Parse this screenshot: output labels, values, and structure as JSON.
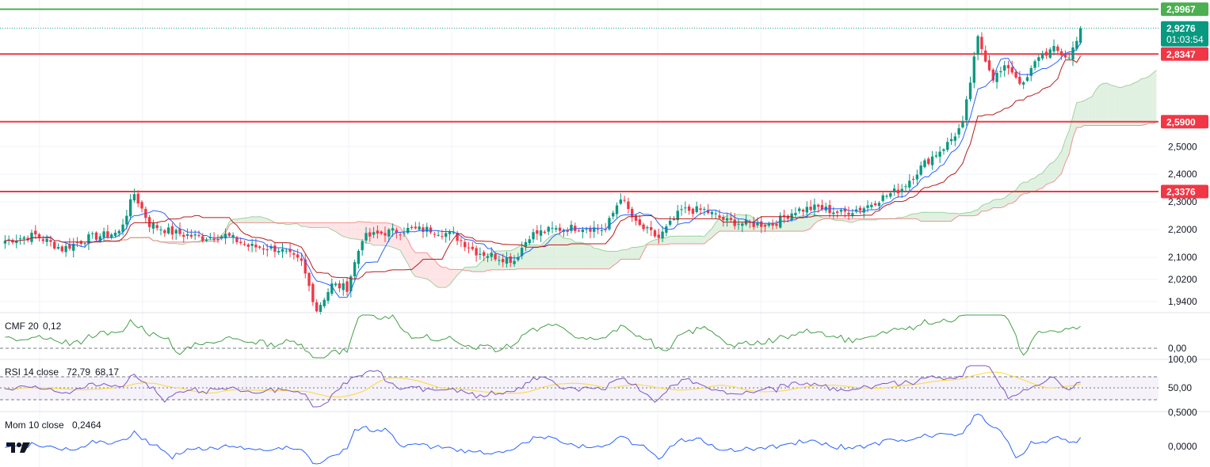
{
  "colors": {
    "up": "#089981",
    "down": "#f23645",
    "tenkan": "#2962ff",
    "kijun": "#b71c1c",
    "cloud_bull": "#c8e6c9",
    "cloud_bear": "#ffcdd2",
    "level": "#f23645",
    "top_level": "#4caf50",
    "cmf": "#43a047",
    "rsi": "#7e57c2",
    "rsi_ma": "#fdd835",
    "mom": "#2962ff",
    "grid": "#f0f3fa"
  },
  "logo_icon": "tradingview-logo-icon",
  "price_axis": {
    "ticks": [
      "2,5000",
      "2,4000",
      "2,3000",
      "2,2000",
      "2,1000",
      "2,0200",
      "1,9400"
    ],
    "tick_values": [
      2.5,
      2.4,
      2.3,
      2.2,
      2.1,
      2.02,
      1.94
    ],
    "labels": [
      {
        "text": "2,9967",
        "value": 2.9967,
        "kind": "top_level"
      },
      {
        "text": "2,9276",
        "value": 2.9276,
        "kind": "last_price",
        "countdown": "01:03:54"
      },
      {
        "text": "2,8347",
        "value": 2.8347,
        "kind": "level"
      },
      {
        "text": "2,5900",
        "value": 2.59,
        "kind": "level"
      },
      {
        "text": "2,3376",
        "value": 2.3376,
        "kind": "level"
      }
    ]
  },
  "indicators": {
    "cmf": {
      "name": "CMF 20",
      "value": "0,12",
      "axis": [
        "0,00"
      ]
    },
    "rsi": {
      "name": "RSI 14 close",
      "value": "72,79",
      "ma_value": "68,17",
      "axis": [
        "100,00",
        "50,00"
      ]
    },
    "mom": {
      "name": "Mom 10 close",
      "value": "0,2464",
      "axis": [
        "0,5000",
        "0,0000"
      ]
    }
  },
  "chart_data": {
    "type": "candlestick",
    "levels": [
      2.9967,
      2.8347,
      2.59,
      2.3376
    ],
    "last_price": 2.9276,
    "ylim": [
      1.9,
      3.03
    ],
    "anchors": [
      [
        0,
        2.16
      ],
      [
        8,
        2.18
      ],
      [
        15,
        2.13
      ],
      [
        22,
        2.17
      ],
      [
        30,
        2.19
      ],
      [
        34,
        2.33
      ],
      [
        38,
        2.22
      ],
      [
        44,
        2.19
      ],
      [
        52,
        2.17
      ],
      [
        58,
        2.18
      ],
      [
        64,
        2.14
      ],
      [
        72,
        2.13
      ],
      [
        78,
        2.08
      ],
      [
        82,
        1.91
      ],
      [
        86,
        2.0
      ],
      [
        90,
        1.99
      ],
      [
        94,
        2.17
      ],
      [
        100,
        2.19
      ],
      [
        106,
        2.2
      ],
      [
        112,
        2.2
      ],
      [
        118,
        2.18
      ],
      [
        124,
        2.12
      ],
      [
        130,
        2.1
      ],
      [
        134,
        2.09
      ],
      [
        138,
        2.18
      ],
      [
        144,
        2.2
      ],
      [
        152,
        2.21
      ],
      [
        158,
        2.2
      ],
      [
        162,
        2.32
      ],
      [
        166,
        2.22
      ],
      [
        172,
        2.17
      ],
      [
        178,
        2.27
      ],
      [
        184,
        2.27
      ],
      [
        190,
        2.23
      ],
      [
        196,
        2.22
      ],
      [
        202,
        2.22
      ],
      [
        208,
        2.27
      ],
      [
        214,
        2.28
      ],
      [
        220,
        2.26
      ],
      [
        226,
        2.28
      ],
      [
        230,
        2.31
      ],
      [
        236,
        2.35
      ],
      [
        242,
        2.44
      ],
      [
        248,
        2.51
      ],
      [
        252,
        2.58
      ],
      [
        256,
        2.89
      ],
      [
        260,
        2.75
      ],
      [
        264,
        2.79
      ],
      [
        268,
        2.72
      ],
      [
        272,
        2.83
      ],
      [
        276,
        2.85
      ],
      [
        280,
        2.82
      ],
      [
        283,
        2.93
      ]
    ],
    "x_count": 284
  }
}
